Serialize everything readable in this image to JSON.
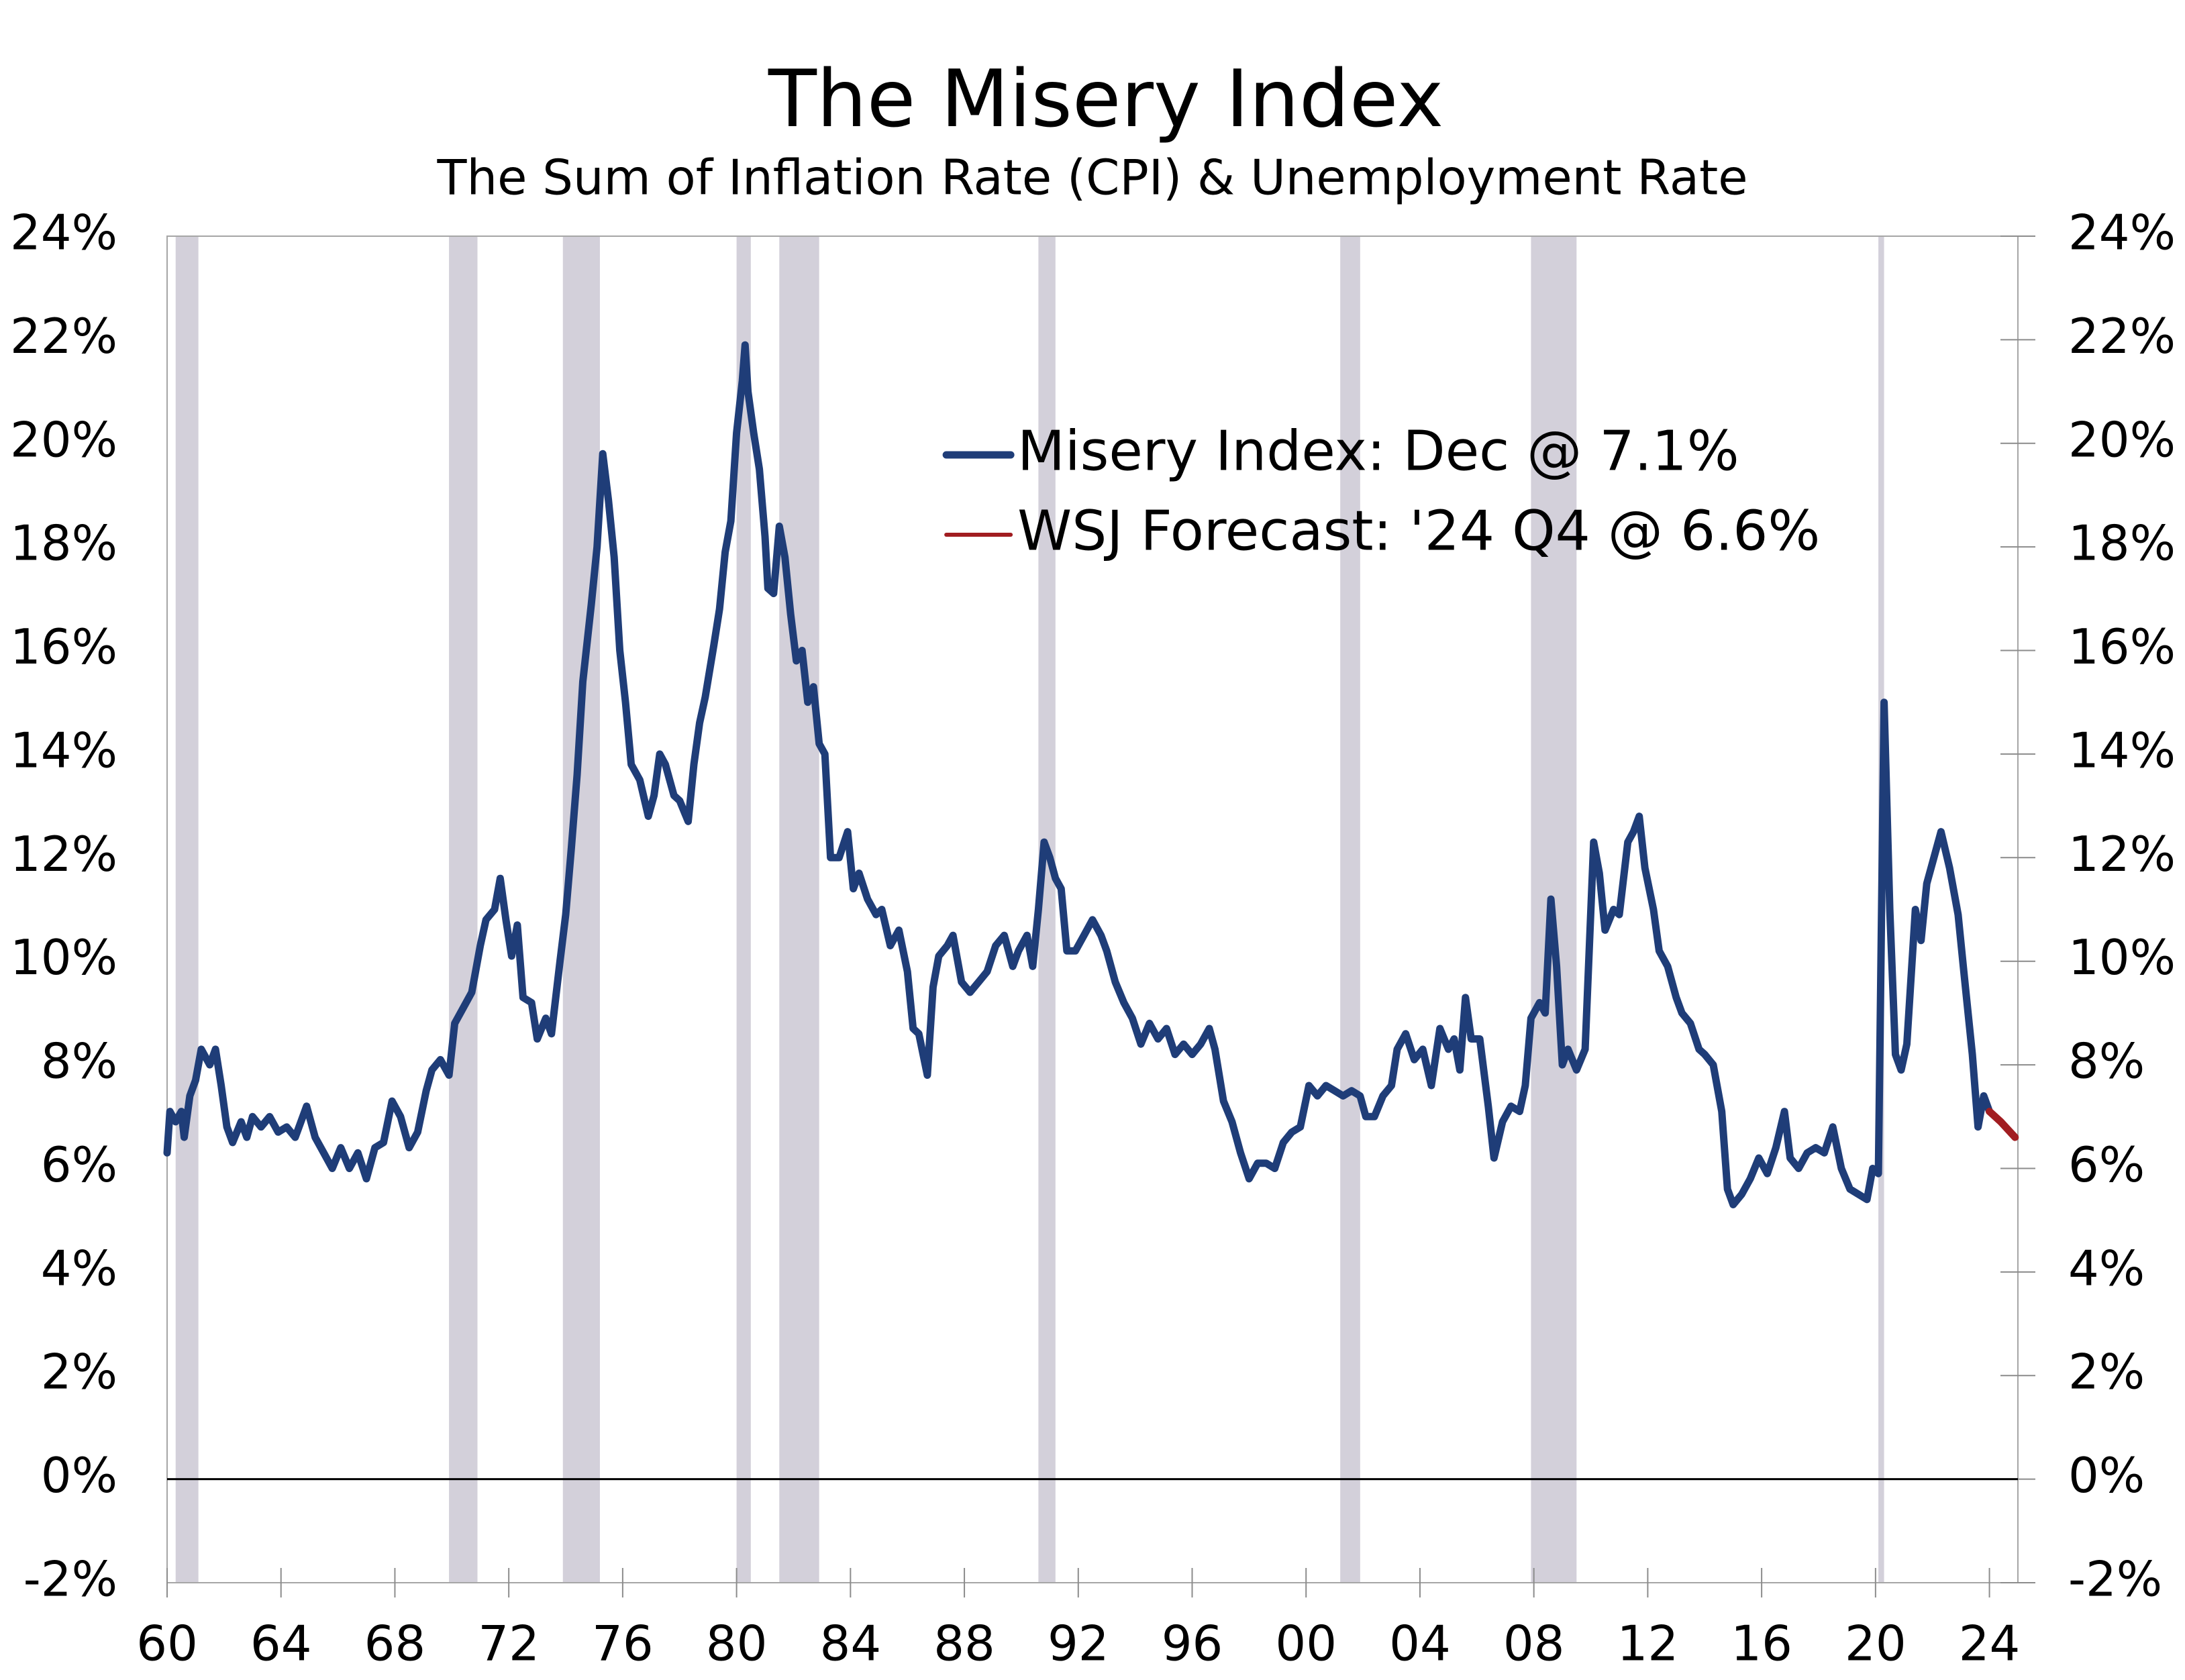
{
  "chart_data": {
    "type": "line",
    "title": "The Misery Index",
    "subtitle": "The Sum of Inflation Rate (CPI) & Unemployment Rate",
    "xlim": [
      1960,
      2025
    ],
    "xticks": [
      {
        "value": 1960,
        "label": "60"
      },
      {
        "value": 1964,
        "label": "64"
      },
      {
        "value": 1968,
        "label": "68"
      },
      {
        "value": 1972,
        "label": "72"
      },
      {
        "value": 1976,
        "label": "76"
      },
      {
        "value": 1980,
        "label": "80"
      },
      {
        "value": 1984,
        "label": "84"
      },
      {
        "value": 1988,
        "label": "88"
      },
      {
        "value": 1992,
        "label": "92"
      },
      {
        "value": 1996,
        "label": "96"
      },
      {
        "value": 2000,
        "label": "00"
      },
      {
        "value": 2004,
        "label": "04"
      },
      {
        "value": 2008,
        "label": "08"
      },
      {
        "value": 2012,
        "label": "12"
      },
      {
        "value": 2016,
        "label": "16"
      },
      {
        "value": 2020,
        "label": "20"
      },
      {
        "value": 2024,
        "label": "24"
      }
    ],
    "ylim": [
      -2,
      24
    ],
    "yticks": [
      {
        "value": -2,
        "label": "-2%"
      },
      {
        "value": 0,
        "label": "0%"
      },
      {
        "value": 2,
        "label": "2%"
      },
      {
        "value": 4,
        "label": "4%"
      },
      {
        "value": 6,
        "label": "6%"
      },
      {
        "value": 8,
        "label": "8%"
      },
      {
        "value": 10,
        "label": "10%"
      },
      {
        "value": 12,
        "label": "12%"
      },
      {
        "value": 14,
        "label": "14%"
      },
      {
        "value": 16,
        "label": "16%"
      },
      {
        "value": 18,
        "label": "18%"
      },
      {
        "value": 20,
        "label": "20%"
      },
      {
        "value": 22,
        "label": "22%"
      },
      {
        "value": 24,
        "label": "24%"
      }
    ],
    "y2lim": [
      -2,
      24
    ],
    "y2ticks": [
      {
        "value": -2,
        "label": "-2%"
      },
      {
        "value": 0,
        "label": "0%"
      },
      {
        "value": 2,
        "label": "2%"
      },
      {
        "value": 4,
        "label": "4%"
      },
      {
        "value": 6,
        "label": "6%"
      },
      {
        "value": 8,
        "label": "8%"
      },
      {
        "value": 10,
        "label": "10%"
      },
      {
        "value": 12,
        "label": "12%"
      },
      {
        "value": 14,
        "label": "14%"
      },
      {
        "value": 16,
        "label": "16%"
      },
      {
        "value": 18,
        "label": "18%"
      },
      {
        "value": 20,
        "label": "20%"
      },
      {
        "value": 22,
        "label": "22%"
      },
      {
        "value": 24,
        "label": "24%"
      }
    ],
    "legend": "top-center",
    "recession_color": "#d3d0da",
    "recessions": [
      [
        1960.3,
        1961.1
      ],
      [
        1969.9,
        1970.9
      ],
      [
        1973.9,
        1975.2
      ],
      [
        1980.0,
        1980.5
      ],
      [
        1981.5,
        1982.9
      ],
      [
        1990.6,
        1991.2
      ],
      [
        2001.2,
        2001.9
      ],
      [
        2007.9,
        2009.5
      ],
      [
        2020.1,
        2020.3
      ]
    ],
    "series": [
      {
        "name": "Misery Index: Dec @ 7.1%",
        "color": "#1f3d78",
        "x": [
          1960.0,
          1960.1,
          1960.3,
          1960.5,
          1960.6,
          1960.8,
          1961.0,
          1961.2,
          1961.5,
          1961.7,
          1961.9,
          1962.1,
          1962.3,
          1962.6,
          1962.8,
          1963.0,
          1963.3,
          1963.6,
          1963.9,
          1964.2,
          1964.5,
          1964.9,
          1965.2,
          1965.5,
          1965.8,
          1966.1,
          1966.4,
          1966.7,
          1967.0,
          1967.3,
          1967.6,
          1967.9,
          1968.2,
          1968.5,
          1968.8,
          1969.1,
          1969.3,
          1969.6,
          1969.9,
          1970.1,
          1970.4,
          1970.7,
          1971.0,
          1971.2,
          1971.5,
          1971.7,
          1971.9,
          1972.1,
          1972.3,
          1972.5,
          1972.8,
          1973.0,
          1973.3,
          1973.5,
          1973.8,
          1974.0,
          1974.2,
          1974.4,
          1974.6,
          1974.9,
          1975.1,
          1975.3,
          1975.5,
          1975.7,
          1975.9,
          1976.1,
          1976.3,
          1976.6,
          1976.9,
          1977.1,
          1977.3,
          1977.5,
          1977.8,
          1978.0,
          1978.3,
          1978.5,
          1978.7,
          1978.9,
          1979.2,
          1979.4,
          1979.6,
          1979.8,
          1980.0,
          1980.2,
          1980.3,
          1980.4,
          1980.6,
          1980.8,
          1981.0,
          1981.1,
          1981.3,
          1981.5,
          1981.7,
          1981.9,
          1982.1,
          1982.3,
          1982.5,
          1982.7,
          1982.9,
          1983.1,
          1983.3,
          1983.6,
          1983.9,
          1984.1,
          1984.3,
          1984.6,
          1984.9,
          1985.1,
          1985.4,
          1985.7,
          1986.0,
          1986.2,
          1986.4,
          1986.7,
          1986.9,
          1987.1,
          1987.4,
          1987.6,
          1987.9,
          1988.2,
          1988.5,
          1988.8,
          1989.1,
          1989.4,
          1989.7,
          1989.9,
          1990.2,
          1990.4,
          1990.6,
          1990.8,
          1991.0,
          1991.2,
          1991.4,
          1991.6,
          1991.9,
          1992.2,
          1992.5,
          1992.8,
          1993.0,
          1993.3,
          1993.6,
          1993.9,
          1994.2,
          1994.5,
          1994.8,
          1995.1,
          1995.4,
          1995.7,
          1996.0,
          1996.3,
          1996.6,
          1996.8,
          1997.1,
          1997.4,
          1997.7,
          1998.0,
          1998.3,
          1998.6,
          1998.9,
          1999.2,
          1999.5,
          1999.8,
          2000.1,
          2000.4,
          2000.7,
          2001.0,
          2001.3,
          2001.6,
          2001.9,
          2002.1,
          2002.4,
          2002.7,
          2003.0,
          2003.2,
          2003.5,
          2003.8,
          2004.1,
          2004.4,
          2004.7,
          2005.0,
          2005.2,
          2005.4,
          2005.6,
          2005.8,
          2006.1,
          2006.4,
          2006.6,
          2006.9,
          2007.2,
          2007.5,
          2007.7,
          2007.9,
          2008.2,
          2008.4,
          2008.6,
          2008.8,
          2009.0,
          2009.2,
          2009.5,
          2009.8,
          2010.1,
          2010.3,
          2010.5,
          2010.8,
          2011.0,
          2011.3,
          2011.5,
          2011.7,
          2011.9,
          2012.2,
          2012.4,
          2012.7,
          2013.0,
          2013.2,
          2013.5,
          2013.8,
          2014.0,
          2014.3,
          2014.6,
          2014.8,
          2015.0,
          2015.3,
          2015.6,
          2015.9,
          2016.2,
          2016.5,
          2016.8,
          2017.0,
          2017.3,
          2017.6,
          2017.9,
          2018.2,
          2018.5,
          2018.8,
          2019.1,
          2019.4,
          2019.7,
          2019.9,
          2020.1,
          2020.3,
          2020.5,
          2020.7,
          2020.9,
          2021.1,
          2021.4,
          2021.6,
          2021.8,
          2022.0,
          2022.3,
          2022.6,
          2022.9,
          2023.1,
          2023.4,
          2023.6,
          2023.8,
          2024.0
        ],
        "values": [
          6.3,
          7.1,
          6.9,
          7.1,
          6.6,
          7.4,
          7.7,
          8.3,
          8.0,
          8.3,
          7.6,
          6.8,
          6.5,
          6.9,
          6.6,
          7.0,
          6.8,
          7.0,
          6.7,
          6.8,
          6.6,
          7.2,
          6.6,
          6.3,
          6.0,
          6.4,
          6.0,
          6.3,
          5.8,
          6.4,
          6.5,
          7.3,
          7.0,
          6.4,
          6.7,
          7.5,
          7.9,
          8.1,
          7.8,
          8.8,
          9.1,
          9.4,
          10.3,
          10.8,
          11.0,
          11.6,
          10.8,
          10.1,
          10.7,
          9.3,
          9.2,
          8.5,
          8.9,
          8.6,
          10.0,
          10.9,
          12.2,
          13.6,
          15.4,
          16.9,
          18.0,
          19.8,
          18.9,
          17.8,
          16.0,
          15.0,
          13.8,
          13.5,
          12.8,
          13.2,
          14.0,
          13.8,
          13.2,
          13.1,
          12.7,
          13.8,
          14.6,
          15.1,
          16.1,
          16.8,
          17.9,
          18.5,
          20.2,
          21.2,
          21.9,
          21.0,
          20.2,
          19.5,
          18.2,
          17.2,
          17.1,
          18.4,
          17.8,
          16.7,
          15.8,
          16.0,
          15.0,
          15.3,
          14.2,
          14.0,
          12.0,
          12.0,
          12.5,
          11.4,
          11.7,
          11.2,
          10.9,
          11.0,
          10.3,
          10.6,
          9.8,
          8.7,
          8.6,
          7.8,
          9.5,
          10.1,
          10.3,
          10.5,
          9.6,
          9.4,
          9.6,
          9.8,
          10.3,
          10.5,
          9.9,
          10.2,
          10.5,
          9.9,
          11.0,
          12.3,
          12.0,
          11.6,
          11.4,
          10.2,
          10.2,
          10.5,
          10.8,
          10.5,
          10.2,
          9.6,
          9.2,
          8.9,
          8.4,
          8.8,
          8.5,
          8.7,
          8.2,
          8.4,
          8.2,
          8.4,
          8.7,
          8.3,
          7.3,
          6.9,
          6.3,
          5.8,
          6.1,
          6.1,
          6.0,
          6.5,
          6.7,
          6.8,
          7.6,
          7.4,
          7.6,
          7.5,
          7.4,
          7.5,
          7.4,
          7.0,
          7.0,
          7.4,
          7.6,
          8.3,
          8.6,
          8.1,
          8.3,
          7.6,
          8.7,
          8.3,
          8.5,
          7.9,
          9.3,
          8.5,
          8.5,
          7.2,
          6.2,
          6.9,
          7.2,
          7.1,
          7.6,
          8.9,
          9.2,
          9.0,
          11.2,
          9.9,
          8.0,
          8.3,
          7.9,
          8.3,
          12.3,
          11.7,
          10.6,
          11.0,
          10.9,
          12.3,
          12.5,
          12.8,
          11.8,
          11.0,
          10.2,
          9.9,
          9.3,
          9.0,
          8.8,
          8.3,
          8.2,
          8.0,
          7.1,
          5.6,
          5.3,
          5.5,
          5.8,
          6.2,
          5.9,
          6.4,
          7.1,
          6.2,
          6.0,
          6.3,
          6.4,
          6.3,
          6.8,
          6.0,
          5.6,
          5.5,
          5.4,
          6.0,
          5.9,
          15.0,
          11.0,
          8.2,
          7.9,
          8.4,
          11.0,
          10.4,
          11.5,
          11.9,
          12.5,
          11.8,
          10.9,
          9.8,
          8.2,
          6.8,
          7.4,
          7.1
        ]
      },
      {
        "name": "WSJ Forecast: '24 Q4 @ 6.6%",
        "color": "#a11d21",
        "x": [
          2024.0,
          2024.4,
          2024.9
        ],
        "values": [
          7.1,
          6.9,
          6.6
        ]
      }
    ]
  }
}
